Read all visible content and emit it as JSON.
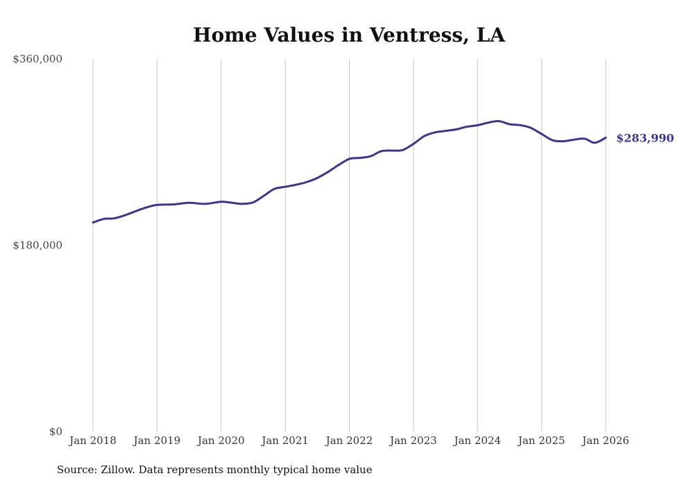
{
  "colors": {
    "line": "#3b3590",
    "grid": "#c4c4c4",
    "end_label": "#3b3590"
  },
  "source_note": "Source: Zillow. Data represents monthly typical home value",
  "chart_data": {
    "type": "line",
    "title": "Home Values in Ventress, LA",
    "xlabel": "",
    "ylabel": "",
    "ylim": [
      0,
      360000
    ],
    "y_ticks": [
      {
        "value": 0,
        "label": "$0"
      },
      {
        "value": 180000,
        "label": "$180,000"
      },
      {
        "value": 360000,
        "label": "$360,000"
      }
    ],
    "x_ticks": [
      {
        "value": 2018,
        "label": "Jan 2018"
      },
      {
        "value": 2019,
        "label": "Jan 2019"
      },
      {
        "value": 2020,
        "label": "Jan 2020"
      },
      {
        "value": 2021,
        "label": "Jan 2021"
      },
      {
        "value": 2022,
        "label": "Jan 2022"
      },
      {
        "value": 2023,
        "label": "Jan 2023"
      },
      {
        "value": 2024,
        "label": "Jan 2024"
      },
      {
        "value": 2025,
        "label": "Jan 2025"
      },
      {
        "value": 2026,
        "label": "Jan 2026"
      }
    ],
    "xlim": [
      2018,
      2026
    ],
    "grid": "vertical",
    "end_label": "$283,990",
    "series": [
      {
        "name": "Typical home value",
        "x": [
          2018.0,
          2018.17,
          2018.33,
          2018.5,
          2018.67,
          2018.83,
          2019.0,
          2019.25,
          2019.5,
          2019.75,
          2020.0,
          2020.17,
          2020.33,
          2020.5,
          2020.67,
          2020.83,
          2021.0,
          2021.17,
          2021.33,
          2021.5,
          2021.67,
          2021.83,
          2022.0,
          2022.17,
          2022.33,
          2022.5,
          2022.67,
          2022.83,
          2023.0,
          2023.17,
          2023.33,
          2023.5,
          2023.67,
          2023.83,
          2024.0,
          2024.17,
          2024.33,
          2024.5,
          2024.67,
          2024.83,
          2025.0,
          2025.17,
          2025.33,
          2025.5,
          2025.67,
          2025.83,
          2026.0
        ],
        "values": [
          202000,
          205500,
          206000,
          209000,
          213000,
          216500,
          219000,
          219500,
          221000,
          220000,
          222000,
          221000,
          220000,
          221500,
          228000,
          234500,
          236500,
          238500,
          241000,
          245000,
          251000,
          257500,
          263500,
          264500,
          266000,
          271000,
          271500,
          272000,
          278000,
          285500,
          289000,
          290500,
          292000,
          294500,
          296000,
          298500,
          300000,
          297000,
          296000,
          293500,
          287500,
          281500,
          280500,
          282000,
          283000,
          279000,
          283990
        ]
      }
    ]
  }
}
